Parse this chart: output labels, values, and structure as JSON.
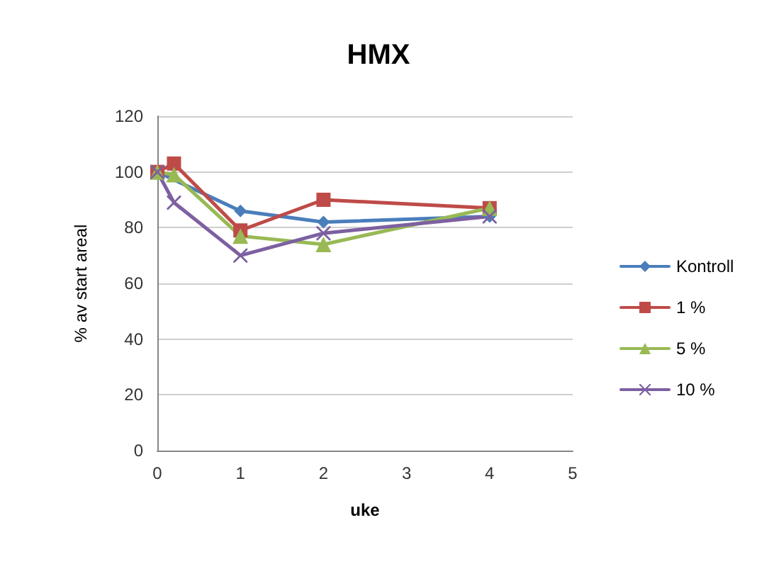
{
  "chart_data": {
    "type": "line",
    "title": "HMX",
    "xlabel": "uke",
    "ylabel": "% av start areal",
    "xlim": [
      0,
      5
    ],
    "xticks": [
      0,
      1,
      2,
      3,
      4,
      5
    ],
    "ylim": [
      0,
      120
    ],
    "yticks": [
      0,
      20,
      40,
      60,
      80,
      100,
      120
    ],
    "grid": "y",
    "legend": "right",
    "line_style": "solid",
    "series": [
      {
        "name": "Kontroll",
        "color": "#4a7ebb",
        "marker": "diamond",
        "x": [
          0,
          1,
          2,
          4
        ],
        "values": [
          100,
          86,
          82,
          84
        ]
      },
      {
        "name": "1 %",
        "color": "#be4b48",
        "marker": "square",
        "x": [
          0,
          0.2,
          1,
          2,
          4
        ],
        "values": [
          100,
          103,
          79,
          90,
          87
        ]
      },
      {
        "name": "5 %",
        "color": "#98b954",
        "marker": "triangle",
        "x": [
          0,
          0.2,
          1,
          2,
          4
        ],
        "values": [
          100,
          99,
          77,
          74,
          87
        ]
      },
      {
        "name": "10 %",
        "color": "#7d60a0",
        "marker": "cross",
        "x": [
          0,
          0.2,
          1,
          2,
          4
        ],
        "values": [
          100,
          89,
          70,
          78,
          84
        ]
      }
    ]
  }
}
